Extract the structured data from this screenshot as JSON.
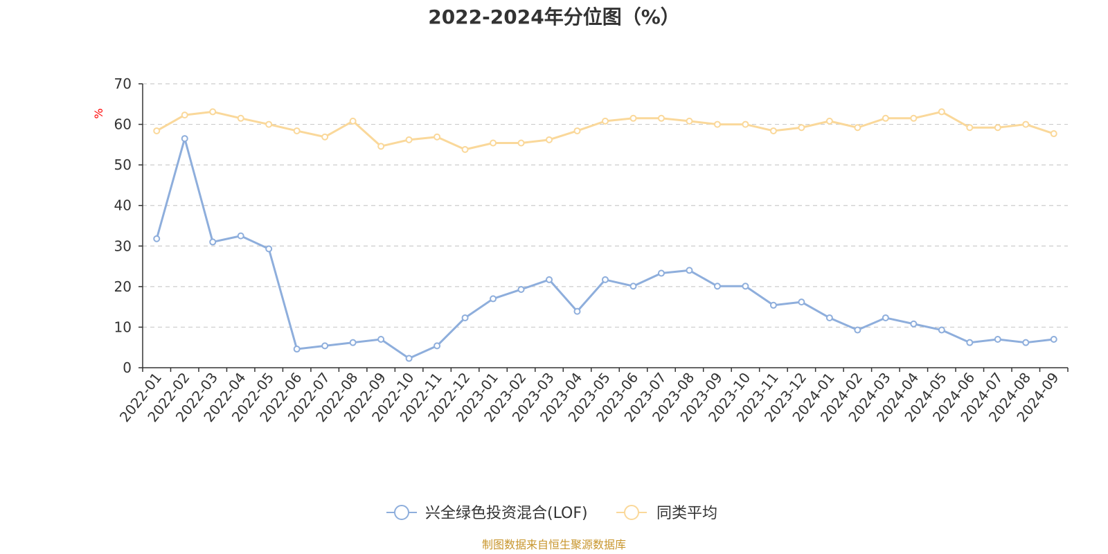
{
  "colors": {
    "series_1": "#8eaedc",
    "series_2": "#fad89a",
    "text": "#333333",
    "unit": "#ff0000",
    "source": "#c8962e",
    "grid": "#cccccc"
  },
  "source_text": "制图数据来自恒生聚源数据库",
  "chart_data": {
    "type": "line",
    "title": "2022-2024年分位图（%）",
    "ylabel": "%",
    "xlabel": "",
    "ylim": [
      0,
      70
    ],
    "yticks": [
      0,
      10,
      20,
      30,
      40,
      50,
      60,
      70
    ],
    "grid": true,
    "legend_position": "bottom",
    "categories": [
      "2022-01",
      "2022-02",
      "2022-03",
      "2022-04",
      "2022-05",
      "2022-06",
      "2022-07",
      "2022-08",
      "2022-09",
      "2022-10",
      "2022-11",
      "2022-12",
      "2023-01",
      "2023-02",
      "2023-03",
      "2023-04",
      "2023-05",
      "2023-06",
      "2023-07",
      "2023-08",
      "2023-09",
      "2023-10",
      "2023-11",
      "2023-12",
      "2024-01",
      "2024-02",
      "2024-03",
      "2024-04",
      "2024-05",
      "2024-06",
      "2024-07",
      "2024-08",
      "2024-09"
    ],
    "series": [
      {
        "name": "兴全绿色投资混合(LOF)",
        "values": [
          31.8,
          56.5,
          31.0,
          32.5,
          29.3,
          4.6,
          5.4,
          6.2,
          7.0,
          2.3,
          5.4,
          12.3,
          17.0,
          19.3,
          21.7,
          13.9,
          21.7,
          20.1,
          23.3,
          24.0,
          20.1,
          20.1,
          15.4,
          16.2,
          12.3,
          9.3,
          12.3,
          10.8,
          9.3,
          6.2,
          7.0,
          6.2,
          7.0
        ]
      },
      {
        "name": "同类平均",
        "values": [
          58.4,
          62.3,
          63.1,
          61.5,
          60.0,
          58.4,
          56.9,
          60.8,
          54.6,
          56.2,
          56.9,
          53.8,
          55.4,
          55.4,
          56.2,
          58.4,
          60.8,
          61.5,
          61.5,
          60.8,
          60.0,
          60.0,
          58.4,
          59.2,
          60.8,
          59.2,
          61.5,
          61.5,
          63.1,
          59.2,
          59.2,
          60.0,
          57.7
        ]
      }
    ]
  }
}
